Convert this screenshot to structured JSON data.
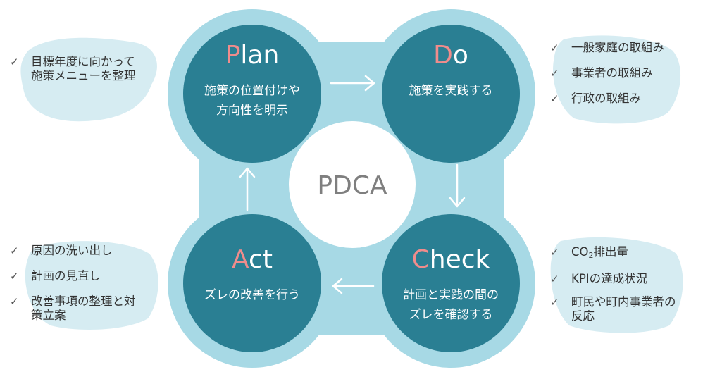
{
  "colors": {
    "outer_blob": "#a7d9e5",
    "stage_circle": "#2a7f93",
    "first_letter": "#f08c8c",
    "arrow": "#ffffff",
    "center_text": "#7f7f7f",
    "note_wash": "#c8e6ee"
  },
  "center_label": "PDCA",
  "stages": {
    "plan": {
      "first_letter": "P",
      "rest": "lan",
      "line1": "施策の位置付けや",
      "line2": "方向性を明示"
    },
    "do": {
      "first_letter": "D",
      "rest": "o",
      "line1": "施策を実践する"
    },
    "check": {
      "first_letter": "C",
      "rest": "heck",
      "line1": "計画と実践の間の",
      "line2": "ズレを確認する"
    },
    "act": {
      "first_letter": "A",
      "rest": "ct",
      "line1": "ズレの改善を行う"
    }
  },
  "icons": {
    "check_mark": "✓",
    "arrow": "arrow-icon"
  },
  "notes": {
    "plan": {
      "items": [
        {
          "line1": "目標年度に向かって",
          "line2": "施策メニューを整理"
        }
      ]
    },
    "do": {
      "items": [
        {
          "text": "一般家庭の取組み"
        },
        {
          "text": "事業者の取組み"
        },
        {
          "text": "行政の取組み"
        }
      ]
    },
    "act": {
      "items": [
        {
          "text": "原因の洗い出し"
        },
        {
          "text": "計画の見直し"
        },
        {
          "line1": "改善事項の整理と対",
          "line2": "策立案"
        }
      ]
    },
    "check": {
      "items": [
        {
          "prefix": "CO",
          "sub": "2",
          "suffix": "排出量"
        },
        {
          "text": "KPIの達成状況"
        },
        {
          "line1": "町民や町内事業者の",
          "line2": "反応"
        }
      ]
    }
  }
}
